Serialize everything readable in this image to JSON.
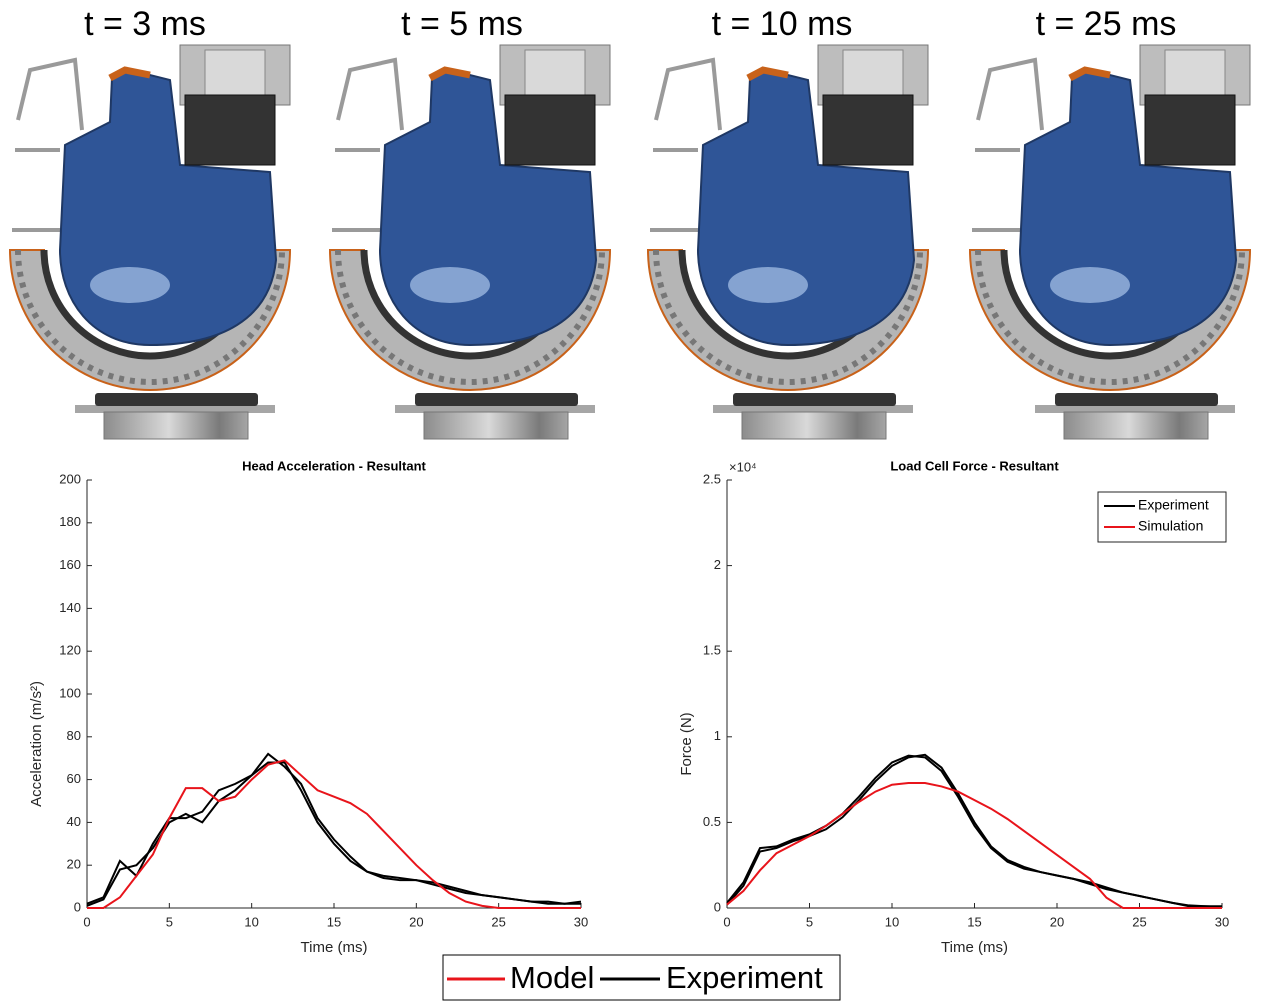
{
  "panel_labels": [
    "t = 3 ms",
    "t = 5 ms",
    "t = 10 ms",
    "t = 25 ms"
  ],
  "chart_data": [
    {
      "type": "line",
      "title": "Head Acceleration - Resultant",
      "xlabel": "Time (ms)",
      "ylabel": "Acceleration (m/s²)",
      "x": [
        0,
        1,
        2,
        3,
        4,
        5,
        6,
        7,
        8,
        9,
        10,
        11,
        12,
        13,
        14,
        15,
        16,
        17,
        18,
        19,
        20,
        21,
        22,
        23,
        24,
        25,
        26,
        27,
        28,
        29,
        30
      ],
      "series": [
        {
          "color": "#000000",
          "values": [
            2,
            5,
            22,
            15,
            30,
            42,
            42,
            45,
            55,
            58,
            62,
            68,
            68,
            55,
            40,
            30,
            22,
            17,
            14,
            13,
            13,
            11,
            9,
            7,
            6,
            5,
            4,
            3,
            3,
            2,
            3
          ]
        },
        {
          "color": "#000000",
          "values": [
            1,
            4,
            18,
            20,
            28,
            40,
            44,
            40,
            50,
            55,
            62,
            72,
            66,
            58,
            42,
            32,
            24,
            17,
            15,
            14,
            13,
            12,
            10,
            8,
            6,
            5,
            4,
            3,
            2,
            2,
            2
          ]
        },
        {
          "color": "#e8141b",
          "values": [
            0,
            0,
            5,
            15,
            25,
            42,
            56,
            56,
            50,
            52,
            60,
            67,
            69,
            62,
            55,
            52,
            49,
            44,
            36,
            28,
            20,
            13,
            7,
            3,
            1,
            0,
            0,
            0,
            0,
            0,
            0
          ]
        }
      ],
      "xlim": [
        0,
        30
      ],
      "xticks": [
        0,
        5,
        10,
        15,
        20,
        25,
        30
      ],
      "ylim": [
        0,
        200
      ],
      "yticks": [
        0,
        20,
        40,
        60,
        80,
        100,
        120,
        140,
        160,
        180,
        200
      ]
    },
    {
      "type": "line",
      "title": "Load Cell Force - Resultant",
      "xlabel": "Time (ms)",
      "ylabel": "Force (N)",
      "y_multiplier": "×10⁴",
      "x": [
        0,
        1,
        2,
        3,
        4,
        5,
        6,
        7,
        8,
        9,
        10,
        11,
        12,
        13,
        14,
        15,
        16,
        17,
        18,
        19,
        20,
        21,
        22,
        23,
        24,
        25,
        26,
        27,
        28,
        29,
        30
      ],
      "series": [
        {
          "name": "Experiment",
          "color": "#000000",
          "values": [
            300,
            1500,
            3500,
            3600,
            4000,
            4300,
            4800,
            5500,
            6500,
            7600,
            8500,
            8900,
            8800,
            8000,
            6500,
            4800,
            3500,
            2700,
            2300,
            2100,
            1900,
            1700,
            1400,
            1100,
            900,
            700,
            500,
            300,
            100,
            100,
            100
          ]
        },
        {
          "color": "#000000",
          "values": [
            200,
            1300,
            3300,
            3500,
            3900,
            4200,
            4600,
            5300,
            6300,
            7400,
            8300,
            8800,
            8950,
            8200,
            6700,
            5000,
            3600,
            2800,
            2400,
            2100,
            1900,
            1700,
            1500,
            1200,
            900,
            700,
            500,
            300,
            150,
            100,
            50
          ]
        },
        {
          "name": "Simulation",
          "color": "#e8141b",
          "values": [
            200,
            1000,
            2200,
            3200,
            3700,
            4200,
            4800,
            5500,
            6200,
            6800,
            7200,
            7300,
            7300,
            7100,
            6800,
            6300,
            5800,
            5200,
            4500,
            3800,
            3100,
            2400,
            1700,
            600,
            0,
            0,
            0,
            0,
            0,
            0,
            0
          ]
        }
      ],
      "legend": "upper right",
      "xlim": [
        0,
        30
      ],
      "xticks": [
        0,
        5,
        10,
        15,
        20,
        25,
        30
      ],
      "ylim": [
        0,
        25000
      ],
      "yticks": [
        {
          "value": 0,
          "label": "0"
        },
        {
          "value": 5000,
          "label": "0.5"
        },
        {
          "value": 10000,
          "label": "1"
        },
        {
          "value": 15000,
          "label": "1.5"
        },
        {
          "value": 20000,
          "label": "2"
        },
        {
          "value": 25000,
          "label": "2.5"
        }
      ]
    }
  ],
  "legend": {
    "items": [
      {
        "name": "Model",
        "color": "#e8141b"
      },
      {
        "name": "Experiment",
        "color": "#000000"
      }
    ]
  }
}
